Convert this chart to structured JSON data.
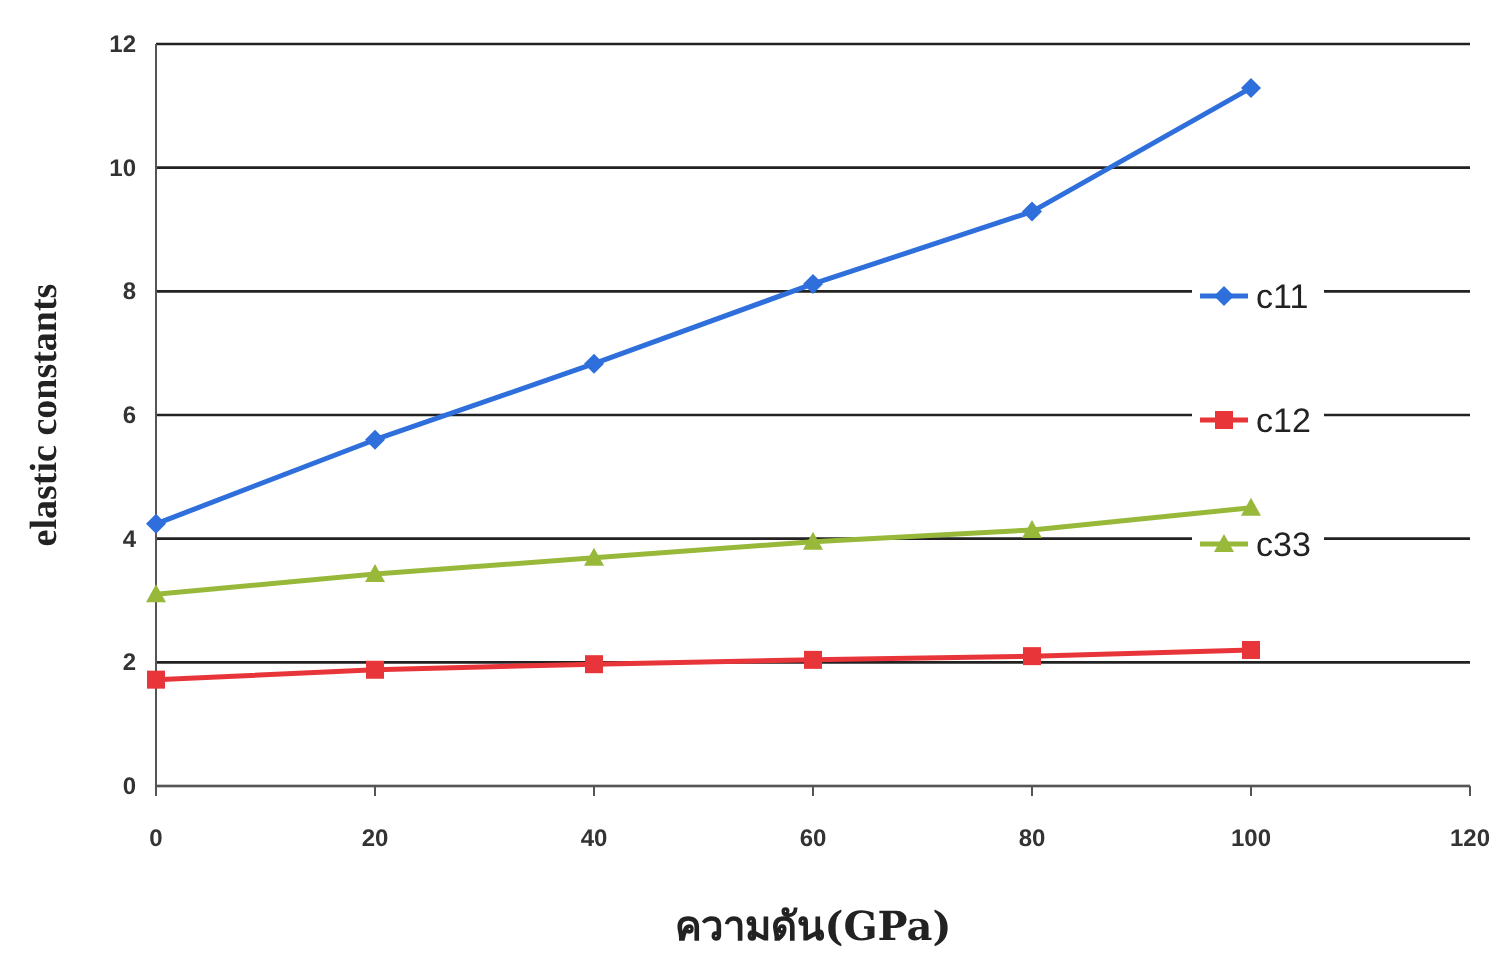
{
  "chart_data": {
    "type": "line",
    "xlabel": "ความดัน(GPa)",
    "ylabel": "elastic constants",
    "x": [
      0,
      20,
      40,
      60,
      80,
      100
    ],
    "series": [
      {
        "name": "c11",
        "color": "#2e6fdc",
        "marker": "diamond",
        "values": [
          4.24,
          5.6,
          6.83,
          8.12,
          9.29,
          11.29
        ]
      },
      {
        "name": "c12",
        "color": "#e8353a",
        "marker": "square",
        "values": [
          1.72,
          1.88,
          1.97,
          2.04,
          2.1,
          2.2
        ]
      },
      {
        "name": "c33",
        "color": "#98b83a",
        "marker": "triangle",
        "values": [
          3.1,
          3.43,
          3.69,
          3.95,
          4.14,
          4.5
        ]
      }
    ],
    "xlim": [
      0,
      120
    ],
    "xticks": [
      0,
      20,
      40,
      60,
      80,
      100,
      120
    ],
    "ylim": [
      0,
      12
    ],
    "yticks": [
      0,
      2,
      4,
      6,
      8,
      10,
      12
    ],
    "grid": "y",
    "legend": "right"
  }
}
